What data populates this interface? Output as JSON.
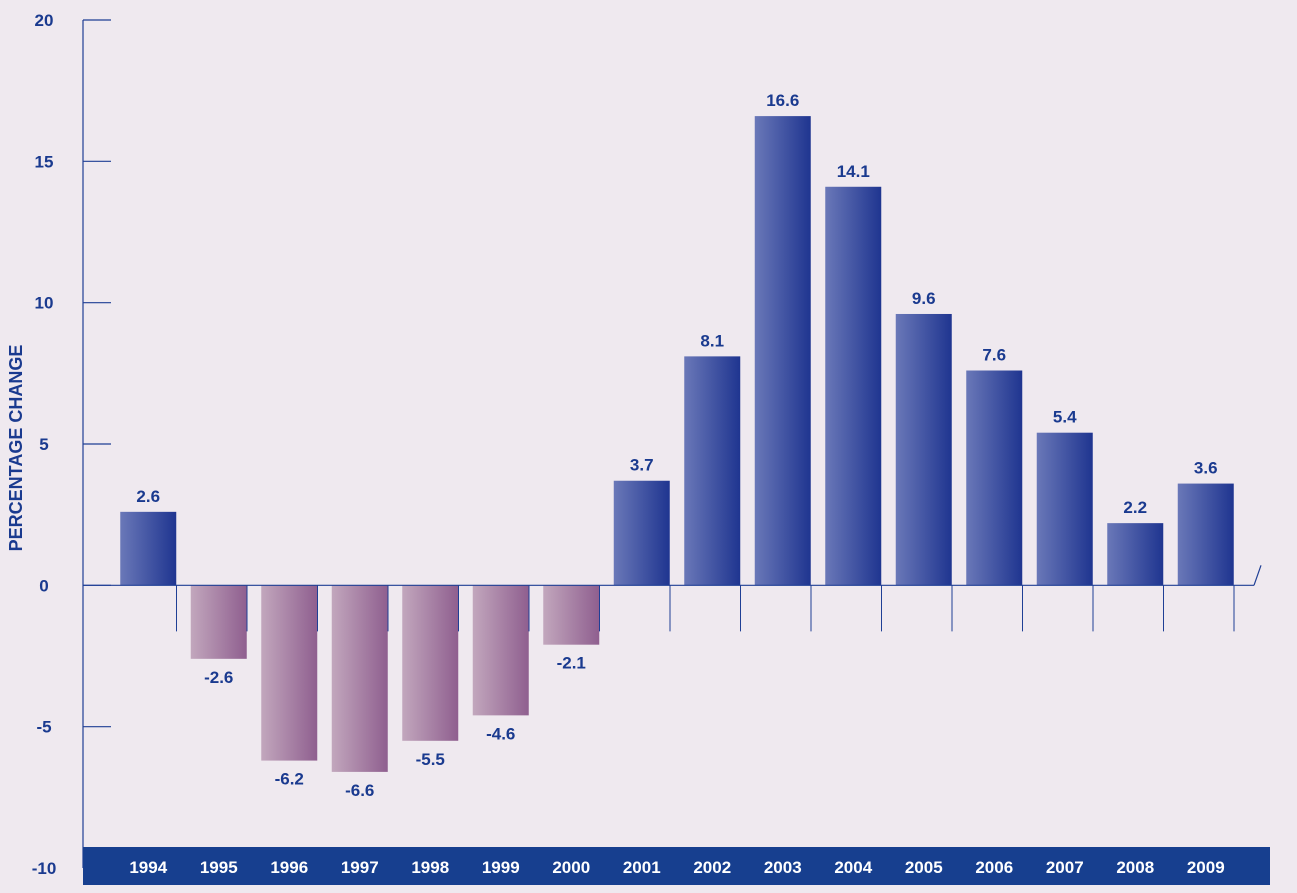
{
  "colors": {
    "background": "#efe9ef",
    "axis": "#1f3f95",
    "label_text": "#1a3a8f",
    "positive_bar_left": "#6a78b8",
    "positive_bar_right": "#1f3590",
    "negative_bar_left": "#c2a7bd",
    "negative_bar_right": "#8f5f8f",
    "year_band": "#173f8f",
    "year_text": "#ffffff"
  },
  "chart_data": {
    "type": "bar",
    "title": "",
    "xlabel": "",
    "ylabel": "PERCENTAGE CHANGE",
    "ylim": [
      -10,
      20
    ],
    "yticks": [
      20,
      15,
      10,
      5,
      0,
      -5,
      -10
    ],
    "grid": false,
    "categories": [
      "1994",
      "1995",
      "1996",
      "1997",
      "1998",
      "1999",
      "2000",
      "2001",
      "2002",
      "2003",
      "2004",
      "2005",
      "2006",
      "2007",
      "2008",
      "2009"
    ],
    "values": [
      2.6,
      -2.6,
      -6.2,
      -6.6,
      -5.5,
      -4.6,
      -2.1,
      3.7,
      8.1,
      16.6,
      14.1,
      9.6,
      7.6,
      5.4,
      2.2,
      3.6
    ],
    "value_labels": [
      "2.6",
      "-2.6",
      "-6.2",
      "-6.6",
      "-5.5",
      "-4.6",
      "-2.1",
      "3.7",
      "8.1",
      "16.6",
      "14.1",
      "9.6",
      "7.6",
      "5.4",
      "2.2",
      "3.6"
    ]
  }
}
